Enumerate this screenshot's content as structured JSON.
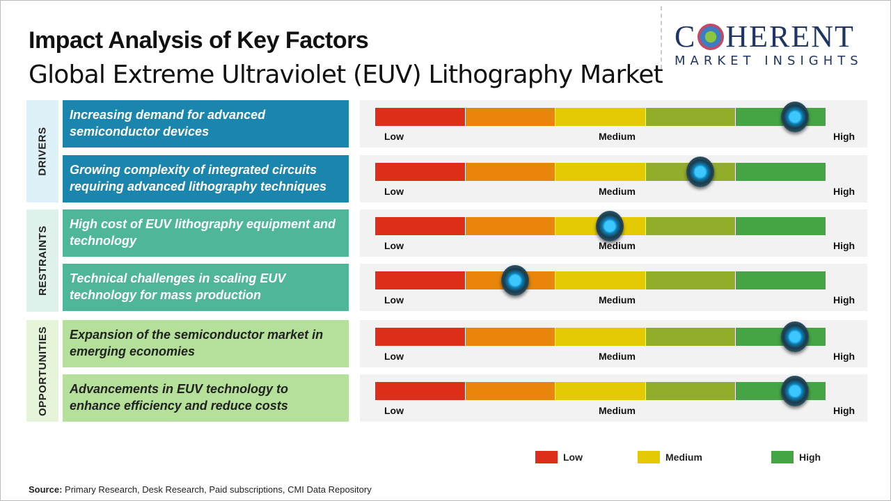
{
  "title": "Impact Analysis of Key Factors",
  "subtitle": "Global Extreme Ultraviolet (EUV) Lithography Market",
  "logo": {
    "line1": "COHERENT",
    "line2": "MARKET INSIGHTS"
  },
  "scale_labels": {
    "low": "Low",
    "medium": "Medium",
    "high": "High"
  },
  "scale_colors": [
    "#dd2e1a",
    "#e8850a",
    "#e4ca05",
    "#92ad2a",
    "#45a545"
  ],
  "categories": [
    {
      "label": "DRIVERS",
      "bg": "#dff1f8",
      "factor_bg": "#1a86ad",
      "factor_color": "#ffffff"
    },
    {
      "label": "RESTRAINTS",
      "bg": "#dff2ec",
      "factor_bg": "#4fb69a",
      "factor_color": "#ffffff"
    },
    {
      "label": "OPPORTUNITIES",
      "bg": "#e6f5da",
      "factor_bg": "#b4e09a",
      "factor_color": "#222222"
    }
  ],
  "factors": [
    {
      "text": "Increasing demand for advanced semiconductor devices",
      "impact": 0.93
    },
    {
      "text": "Growing complexity of integrated circuits requiring advanced lithography techniques",
      "impact": 0.72
    },
    {
      "text": "High cost of EUV lithography equipment and technology",
      "impact": 0.52
    },
    {
      "text": "Technical challenges in scaling EUV technology for mass production",
      "impact": 0.31
    },
    {
      "text": "Expansion of the semiconductor market in emerging economies",
      "impact": 0.93
    },
    {
      "text": "Advancements in EUV technology to enhance efficiency and reduce costs",
      "impact": 0.93
    }
  ],
  "legend": [
    {
      "label": "Low",
      "color": "#dd2e1a"
    },
    {
      "label": "Medium",
      "color": "#e4ca05"
    },
    {
      "label": "High",
      "color": "#45a545"
    }
  ],
  "source": {
    "label": "Source:",
    "text": " Primary Research, Desk Research, Paid subscriptions, CMI Data Repository"
  }
}
